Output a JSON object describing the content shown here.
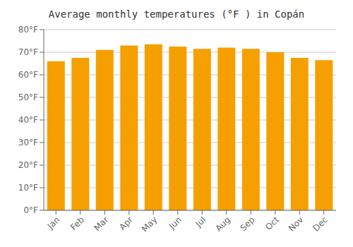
{
  "chart_data": {
    "type": "bar",
    "title": "Average monthly temperatures (°F ) in Copán",
    "categories": [
      "Jan",
      "Feb",
      "Mar",
      "Apr",
      "May",
      "Jun",
      "Jul",
      "Aug",
      "Sep",
      "Oct",
      "Nov",
      "Dec"
    ],
    "values": [
      66.0,
      67.5,
      71.0,
      73.0,
      73.5,
      72.5,
      71.5,
      72.0,
      71.5,
      70.0,
      67.5,
      66.5
    ],
    "color": "#F5A000",
    "ylim": [
      0,
      80
    ],
    "yticks": [
      {
        "value": 0,
        "label": "0°F"
      },
      {
        "value": 10,
        "label": "10°F"
      },
      {
        "value": 20,
        "label": "20°F"
      },
      {
        "value": 30,
        "label": "30°F"
      },
      {
        "value": 40,
        "label": "40°F"
      },
      {
        "value": 50,
        "label": "50°F"
      },
      {
        "value": 60,
        "label": "60°F"
      },
      {
        "value": 70,
        "label": "70°F"
      },
      {
        "value": 80,
        "label": "80°F"
      }
    ],
    "grid": true
  }
}
